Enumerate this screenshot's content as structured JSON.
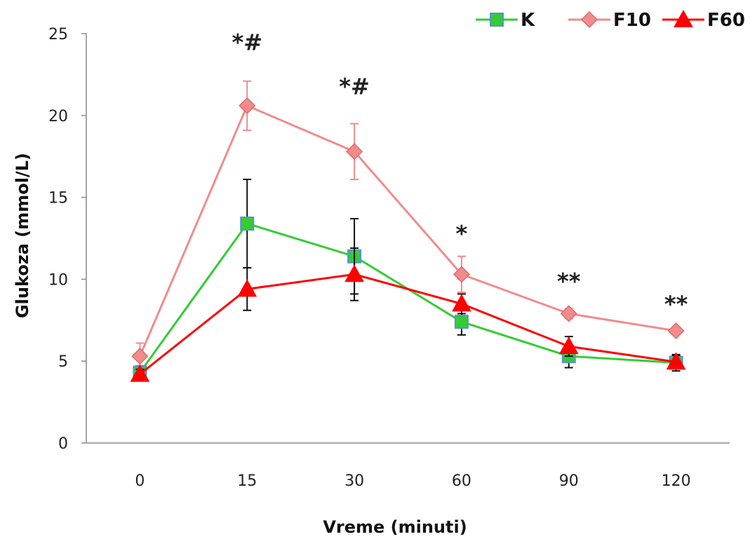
{
  "chart_data": {
    "type": "line",
    "xlabel": "Vreme (minuti)",
    "ylabel": "Glukoza (mmol/L)",
    "ylim": [
      0,
      25
    ],
    "yticks": [
      0,
      5,
      10,
      15,
      20,
      25
    ],
    "categories": [
      "0",
      "15",
      "30",
      "60",
      "90",
      "120"
    ],
    "legend_position": "top-right",
    "series": [
      {
        "name": "K",
        "color": "#33cc33",
        "marker": "square",
        "marker_fill": "#33cc33",
        "marker_edge": "#5b8fd6",
        "values": [
          4.3,
          13.4,
          11.4,
          7.4,
          5.3,
          4.9
        ],
        "errors": [
          0.4,
          2.7,
          2.3,
          0.8,
          0.7,
          0.5
        ],
        "error_color": "#111111"
      },
      {
        "name": "F10",
        "color": "#f28b8b",
        "marker": "diamond",
        "marker_fill": "#f28b8b",
        "marker_edge": "#e06b6b",
        "values": [
          5.3,
          20.6,
          17.8,
          10.3,
          7.9,
          6.85
        ],
        "errors": [
          0.8,
          1.5,
          1.7,
          1.1,
          0.3,
          0.2
        ],
        "error_color": "#f28b8b"
      },
      {
        "name": "F60",
        "color": "#ff0000",
        "marker": "triangle",
        "marker_fill": "#ff0000",
        "marker_edge": "#ff0000",
        "values": [
          4.2,
          9.4,
          10.3,
          8.5,
          5.9,
          4.95
        ],
        "errors": [
          0.3,
          1.3,
          1.6,
          0.6,
          0.6,
          0.4
        ],
        "error_color": "#111111"
      }
    ],
    "annotations": [
      {
        "category": "15",
        "text": "*#",
        "y": 24.0
      },
      {
        "category": "30",
        "text": "*#",
        "y": 21.3
      },
      {
        "category": "60",
        "text": "*",
        "y": 12.3
      },
      {
        "category": "90",
        "text": "**",
        "y": 9.4
      },
      {
        "category": "120",
        "text": "**",
        "y": 8.0
      }
    ]
  }
}
